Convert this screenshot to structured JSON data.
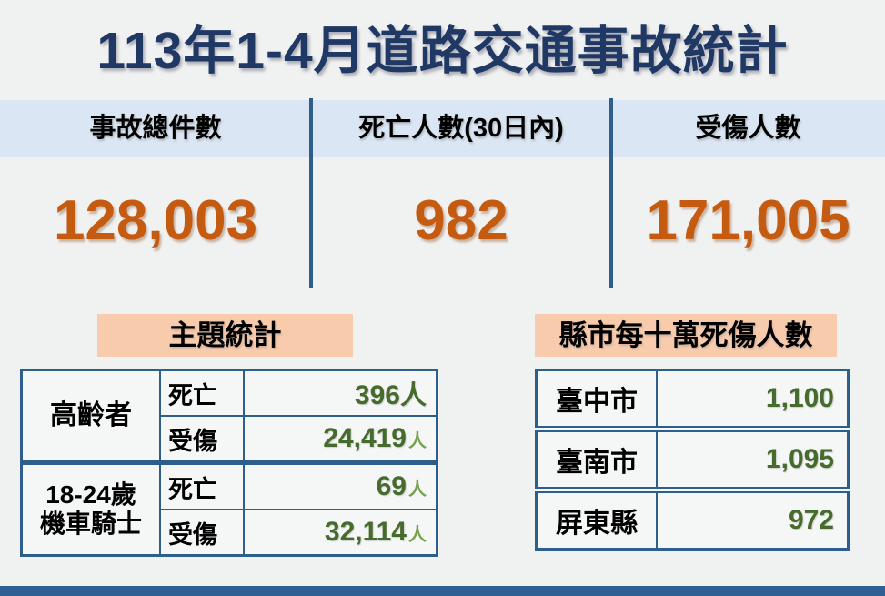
{
  "title": "113年1-4月道路交通事故統計",
  "summary": {
    "columns": [
      {
        "label": "事故總件數",
        "value": "128,003"
      },
      {
        "label": "死亡人數(30日內)",
        "value": "982"
      },
      {
        "label": "受傷人數",
        "value": "171,005"
      }
    ]
  },
  "theme_stats": {
    "title": "主題統計",
    "groups": [
      {
        "category_line1": "高齡者",
        "category_line2": "",
        "rows": [
          {
            "label": "死亡",
            "value": "396",
            "unit": "人"
          },
          {
            "label": "受傷",
            "value": "24,419",
            "unit": "人"
          }
        ]
      },
      {
        "category_line1": "18-24歲",
        "category_line2": "機車騎士",
        "rows": [
          {
            "label": "死亡",
            "value": "69",
            "unit": "人"
          },
          {
            "label": "受傷",
            "value": "32,114",
            "unit": "人"
          }
        ]
      }
    ]
  },
  "county_stats": {
    "title": "縣市每十萬死傷人數",
    "rows": [
      {
        "name": "臺中市",
        "value": "1,100"
      },
      {
        "name": "臺南市",
        "value": "1,095"
      },
      {
        "name": "屏東縣",
        "value": "972"
      }
    ]
  },
  "colors": {
    "title_navy": "#1f3864",
    "band_blue": "#dae6f3",
    "border_blue": "#2e5f8c",
    "number_orange": "#c55a11",
    "value_green": "#466b2d",
    "unit_light_green": "#76a24c",
    "label_peach": "#f8cbad",
    "background_gray": "#f0f1f1",
    "footer_blue": "#2e6094"
  },
  "chart_data": {
    "type": "table",
    "title": "113年1-4月道路交通事故統計",
    "summary": {
      "事故總件數": 128003,
      "死亡人數(30日內)": 982,
      "受傷人數": 171005
    },
    "主題統計": {
      "高齡者": {
        "死亡": 396,
        "受傷": 24419
      },
      "18-24歲機車騎士": {
        "死亡": 69,
        "受傷": 32114
      }
    },
    "縣市每十萬死傷人數": {
      "臺中市": 1100,
      "臺南市": 1095,
      "屏東縣": 972
    }
  }
}
